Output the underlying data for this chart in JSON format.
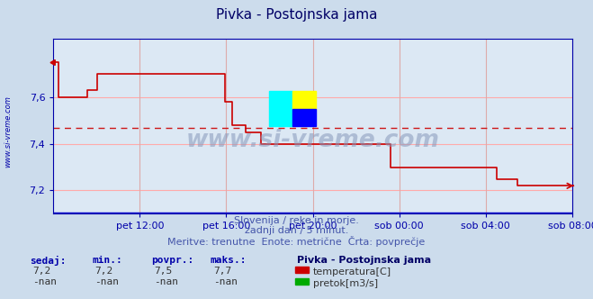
{
  "title": "Pivka - Postojnska jama",
  "bg_color": "#ccdcec",
  "plot_bg_color": "#dce8f4",
  "line_color": "#cc0000",
  "flow_line_color": "#0000cc",
  "grid_color": "#ffaaaa",
  "vgrid_color": "#ddaaaa",
  "axis_color": "#0000aa",
  "avg_color": "#cc0000",
  "ymin": 7.1,
  "ymax": 7.85,
  "yticks": [
    7.2,
    7.4,
    7.6
  ],
  "avg_value": 7.47,
  "xtick_labels": [
    "pet 12:00",
    "pet 16:00",
    "pet 20:00",
    "sob 00:00",
    "sob 04:00",
    "sob 08:00"
  ],
  "xtick_positions": [
    0.1667,
    0.3333,
    0.5,
    0.6667,
    0.8333,
    1.0
  ],
  "subtitle1": "Slovenija / reke in morje.",
  "subtitle2": "zadnji dan / 5 minut.",
  "subtitle3": "Meritve: trenutne  Enote: metrične  Črta: povprečje",
  "watermark": "www.si-vreme.com",
  "left_label": "www.si-vreme.com",
  "legend_title": "Pivka - Postojnska jama",
  "legend_items": [
    "temperatura[C]",
    "pretok[m3/s]"
  ],
  "legend_colors": [
    "#cc0000",
    "#00aa00"
  ],
  "stats_labels": [
    "sedaj:",
    "min.:",
    "povpr.:",
    "maks.:"
  ],
  "stats_temp": [
    "7,2",
    "7,2",
    "7,5",
    "7,7"
  ],
  "stats_flow": [
    "-nan",
    "-nan",
    "-nan",
    "-nan"
  ]
}
